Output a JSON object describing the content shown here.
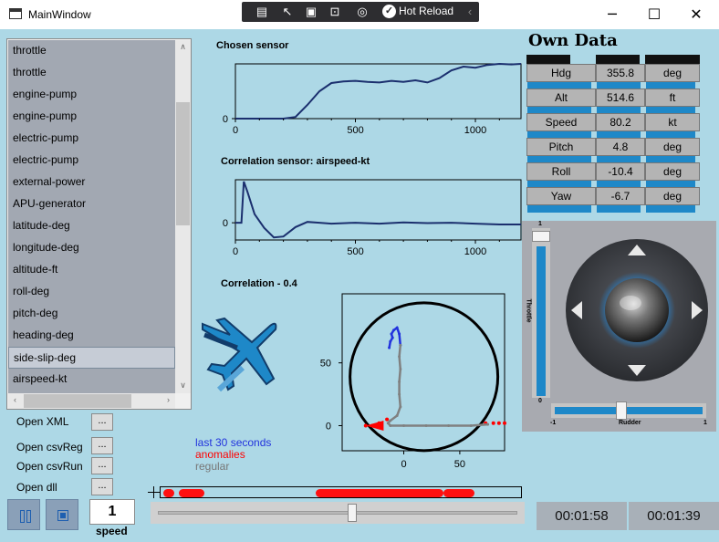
{
  "window": {
    "title": "MainWindow"
  },
  "debug_toolbar": {
    "hot_reload_label": "Hot Reload"
  },
  "window_controls": {
    "minimize": "─",
    "maximize": "☐",
    "close": "✕"
  },
  "sensor_list": {
    "items": [
      "throttle",
      "throttle",
      "engine-pump",
      "engine-pump",
      "electric-pump",
      "electric-pump",
      "external-power",
      "APU-generator",
      "latitude-deg",
      "longitude-deg",
      "altitude-ft",
      "roll-deg",
      "pitch-deg",
      "heading-deg",
      "side-slip-deg",
      "airspeed-kt"
    ],
    "selected_index": 14
  },
  "open_buttons": [
    {
      "label": "Open XML",
      "button": "..."
    },
    {
      "label": "Open csvReg",
      "button": "..."
    },
    {
      "label": "Open csvRun",
      "button": "..."
    },
    {
      "label": "Open dll",
      "button": "..."
    }
  ],
  "playback": {
    "speed_value": "1",
    "speed_label": "speed",
    "progress": 0.54
  },
  "times": {
    "current": "00:01:58",
    "total": "00:01:39"
  },
  "legend": {
    "last": "last 30 seconds",
    "anomalies": "anomalies",
    "regular": "regular"
  },
  "colors": {
    "accent_blue": "#1e88c8",
    "anomaly_red": "#ff0000",
    "series_navy": "#1b2f6e"
  },
  "own_data": {
    "title": "Own Data",
    "rows": [
      {
        "label": "Hdg",
        "value": "355.8",
        "unit": "deg"
      },
      {
        "label": "Alt",
        "value": "514.6",
        "unit": "ft"
      },
      {
        "label": "Speed",
        "value": "80.2",
        "unit": "kt"
      },
      {
        "label": "Pitch",
        "value": "4.8",
        "unit": "deg"
      },
      {
        "label": "Roll",
        "value": "-10.4",
        "unit": "deg"
      },
      {
        "label": "Yaw",
        "value": "-6.7",
        "unit": "deg"
      }
    ]
  },
  "joystick": {
    "throttle_label": "Throttle",
    "throttle_max": "1",
    "throttle_min": "0",
    "throttle_level": 1.0,
    "rudder_label": "Rudder",
    "rudder_min": "-1",
    "rudder_max": "1",
    "rudder_level": -0.1
  },
  "chart_data": [
    {
      "type": "line",
      "title": "Chosen sensor",
      "x_ticks": [
        "0",
        "500",
        "1000"
      ],
      "y_ticks": [
        "0"
      ],
      "xlim": [
        0,
        1190
      ],
      "ylim": [
        0,
        1
      ],
      "x": [
        0,
        100,
        200,
        250,
        300,
        350,
        400,
        450,
        500,
        550,
        600,
        650,
        700,
        750,
        800,
        850,
        900,
        950,
        1000,
        1050,
        1100,
        1150,
        1190
      ],
      "y": [
        0,
        0,
        0,
        0.03,
        0.25,
        0.5,
        0.65,
        0.68,
        0.69,
        0.67,
        0.66,
        0.69,
        0.67,
        0.7,
        0.66,
        0.74,
        0.88,
        0.95,
        0.93,
        0.98,
        1.0,
        0.99,
        1.0
      ]
    },
    {
      "type": "line",
      "title": "Correlation sensor: airspeed-kt",
      "x_ticks": [
        "0",
        "500",
        "1000"
      ],
      "y_ticks": [
        "0"
      ],
      "xlim": [
        0,
        1190
      ],
      "ylim": [
        -1,
        2.5
      ],
      "x": [
        0,
        25,
        35,
        50,
        80,
        120,
        160,
        200,
        250,
        300,
        350,
        400,
        500,
        600,
        700,
        800,
        900,
        1000,
        1100,
        1190
      ],
      "y": [
        0,
        0,
        2.4,
        1.8,
        0.5,
        -0.3,
        -0.85,
        -0.8,
        -0.25,
        0.05,
        0,
        -0.05,
        0,
        -0.05,
        0.02,
        -0.02,
        0,
        -0.05,
        -0.1,
        -0.1
      ]
    },
    {
      "type": "scatter",
      "title": "Correlation - 0.4",
      "x_ticks": [
        "0",
        "50"
      ],
      "y_ticks": [
        "0",
        "50"
      ],
      "xlim": [
        -55,
        90
      ],
      "ylim": [
        -20,
        105
      ],
      "series": [
        {
          "name": "last 30 seconds",
          "x": [
            -13,
            -12,
            -10,
            -11,
            -9,
            -6,
            -4,
            -3
          ],
          "y": [
            62,
            67,
            70,
            73,
            76,
            78,
            73,
            64
          ]
        },
        {
          "name": "anomalies",
          "x": [
            -34,
            -28,
            -22,
            -15,
            73,
            80,
            85,
            90
          ],
          "y": [
            0,
            0,
            2,
            5,
            2,
            2,
            2,
            2
          ]
        },
        {
          "name": "regular",
          "x": [
            -3,
            -4,
            -3,
            -4,
            -4,
            -3,
            -6,
            -12,
            -14,
            -12,
            0,
            20,
            40,
            60,
            75
          ],
          "y": [
            64,
            55,
            45,
            35,
            25,
            15,
            8,
            4,
            2,
            0,
            0,
            0,
            0,
            0,
            1
          ]
        }
      ]
    }
  ]
}
